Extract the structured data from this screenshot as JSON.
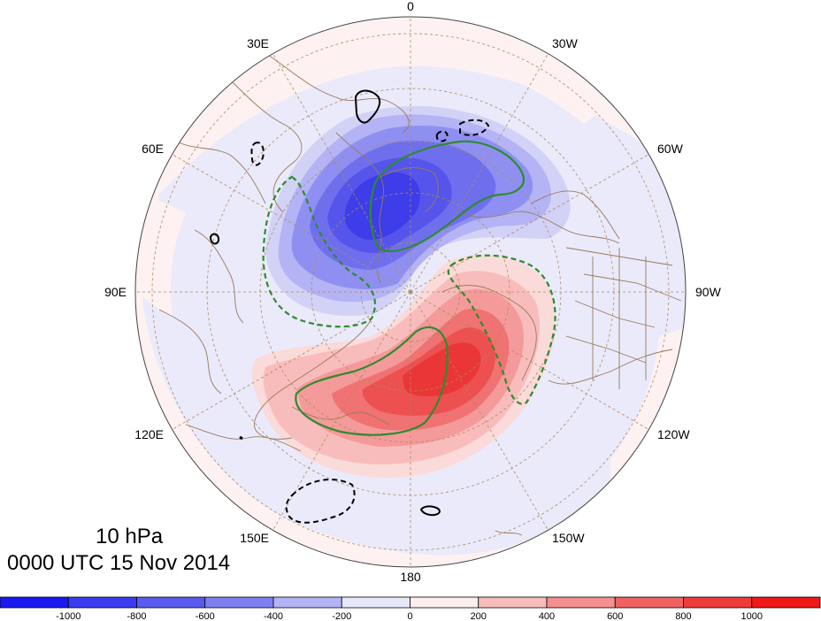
{
  "map": {
    "level": "10 hPa",
    "valid_time": "0000 UTC 15 Nov 2014",
    "longitude_labels": [
      "0",
      "30W",
      "60W",
      "90W",
      "120W",
      "150W",
      "180",
      "150E",
      "120E",
      "90E",
      "60E",
      "30E"
    ],
    "colorbar": {
      "tick_labels": [
        "-1000",
        "-800",
        "-600",
        "-400",
        "-200",
        "0",
        "200",
        "400",
        "600",
        "800",
        "1000"
      ],
      "colors": [
        "#1a1af0",
        "#3b3bf0",
        "#5a5aee",
        "#7f7ff0",
        "#b3b3f5",
        "#e8e8fb",
        "#fdeeee",
        "#f9bcbc",
        "#f59090",
        "#f06262",
        "#ee3c3c",
        "#f01818"
      ]
    },
    "contour_colors": {
      "positive_black": "#000000",
      "negative_black_dashed": "#000000",
      "green_solid": "#2e8b2e",
      "green_dashed": "#2e8b2e"
    },
    "coastline_color": "#9a7a5a",
    "graticule_color": "#b08a5a"
  }
}
